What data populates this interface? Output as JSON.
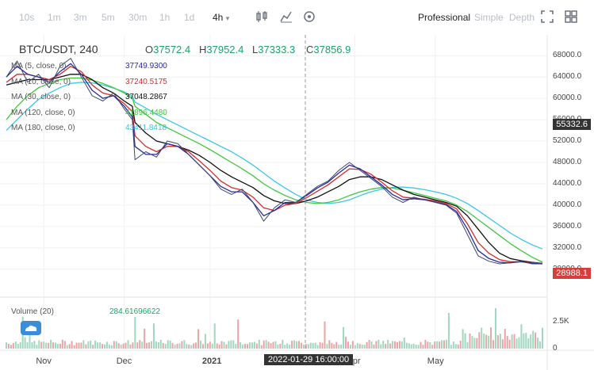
{
  "toolbar": {
    "intervals": [
      "10s",
      "1m",
      "3m",
      "5m",
      "30m",
      "1h",
      "1d"
    ],
    "active_interval": "4h",
    "icons": [
      "candle-style-icon",
      "indicators-icon",
      "settings-icon"
    ],
    "modes": [
      "Professional",
      "Simple",
      "Depth"
    ],
    "active_mode": "Professional",
    "right_icons": [
      "fullscreen-icon",
      "layout-grid-icon"
    ]
  },
  "header": {
    "pair": "BTC/USDT, 240",
    "open_label": "O",
    "open": "37572.4",
    "high_label": "H",
    "high": "37952.4",
    "low_label": "L",
    "low": "37333.3",
    "close_label": "C",
    "close": "37856.9"
  },
  "ma_legend": [
    {
      "label": "MA (5, close, 0)",
      "value": "37749.9300",
      "color": "#2a2a9e"
    },
    {
      "label": "MA (10, close, 0)",
      "value": "37240.5175",
      "color": "#d42c2c"
    },
    {
      "label": "MA (30, close, 0)",
      "value": "37048.2867",
      "color": "#111111"
    },
    {
      "label": "MA (120, close, 0)",
      "value": "41896.4480",
      "color": "#3ec83e"
    },
    {
      "label": "MA (180, close, 0)",
      "value": "43411.8418",
      "color": "#39c6e6"
    }
  ],
  "price_tags": {
    "upper": {
      "value": "55332.6",
      "color": "#333333"
    },
    "last": {
      "value": "28988.1",
      "color": "#d43f3a"
    }
  },
  "volume": {
    "title": "Volume (20)",
    "value": "284.61696622",
    "ticks": [
      {
        "label": "2.5K",
        "v": 2500
      },
      {
        "label": "0",
        "v": 0
      }
    ],
    "max": 3600
  },
  "crosshair_label": "2022-01-29 16:00:00",
  "chart_data": {
    "type": "line",
    "title": "BTC/USDT, 240",
    "y_ticks": [
      68000,
      64000,
      60000,
      56000,
      52000,
      48000,
      44000,
      40000,
      36000,
      32000,
      28000
    ],
    "ylim": [
      25000,
      71000
    ],
    "x_ticks": [
      "Nov",
      "Dec",
      "2021",
      "Apr",
      "May"
    ],
    "x_tick_pos": [
      0.07,
      0.22,
      0.38,
      0.65,
      0.8
    ],
    "price_series": {
      "name": "BTC/USDT",
      "x": [
        0,
        0.02,
        0.04,
        0.06,
        0.08,
        0.1,
        0.12,
        0.14,
        0.16,
        0.18,
        0.2,
        0.22,
        0.235,
        0.24,
        0.26,
        0.28,
        0.3,
        0.32,
        0.34,
        0.36,
        0.38,
        0.4,
        0.42,
        0.44,
        0.46,
        0.48,
        0.5,
        0.52,
        0.54,
        0.56,
        0.58,
        0.6,
        0.62,
        0.64,
        0.66,
        0.68,
        0.7,
        0.72,
        0.74,
        0.76,
        0.78,
        0.8,
        0.82,
        0.84,
        0.86,
        0.88,
        0.9,
        0.92,
        0.94,
        0.96,
        0.98,
        1.0
      ],
      "values": [
        64000,
        67000,
        63000,
        64500,
        62000,
        66000,
        67500,
        64000,
        60500,
        59500,
        61000,
        58000,
        56000,
        48500,
        50000,
        49000,
        52000,
        51500,
        49500,
        47500,
        45500,
        43000,
        42000,
        43000,
        40500,
        37000,
        39500,
        41000,
        40500,
        42000,
        43500,
        44500,
        46500,
        48000,
        46500,
        45000,
        43500,
        41500,
        40500,
        41500,
        41000,
        40500,
        40000,
        38500,
        34500,
        30500,
        29500,
        29000,
        29200,
        29500,
        29000,
        28988
      ]
    },
    "series": [
      {
        "name": "MA (5, close, 0)",
        "values": [
          64000,
          66000,
          64500,
          64000,
          63000,
          65000,
          66500,
          64500,
          61500,
          60000,
          60500,
          58500,
          56500,
          51000,
          49500,
          49500,
          51500,
          51000,
          49500,
          47500,
          45500,
          43500,
          42500,
          42500,
          40500,
          38000,
          39000,
          40500,
          40500,
          41800,
          43200,
          44300,
          46000,
          47500,
          46800,
          45300,
          43800,
          42000,
          41000,
          41200,
          41000,
          40600,
          40100,
          38800,
          35500,
          31500,
          30000,
          29300,
          29200,
          29400,
          29100,
          29000
        ]
      },
      {
        "name": "MA (10, close, 0)",
        "values": [
          63000,
          64500,
          64500,
          64000,
          63500,
          64500,
          66000,
          65000,
          62500,
          61000,
          60500,
          59000,
          57500,
          53000,
          51000,
          50000,
          51000,
          51000,
          50000,
          48300,
          46500,
          44500,
          43300,
          42800,
          41500,
          39500,
          39000,
          40000,
          40300,
          41400,
          42600,
          43800,
          45300,
          46800,
          46700,
          45800,
          44300,
          42700,
          41500,
          41300,
          41100,
          40800,
          40300,
          39300,
          36500,
          33000,
          31000,
          29800,
          29400,
          29400,
          29200,
          29100
        ]
      },
      {
        "name": "MA (30, close, 0)",
        "values": [
          62500,
          63000,
          63500,
          63500,
          63500,
          64000,
          64500,
          64500,
          63500,
          62000,
          61000,
          59500,
          58500,
          55500,
          53500,
          52000,
          51500,
          51000,
          50300,
          49300,
          48000,
          46500,
          45300,
          44300,
          43300,
          41800,
          40800,
          40300,
          40300,
          40800,
          41500,
          42500,
          43500,
          44800,
          45300,
          45300,
          44800,
          43800,
          42800,
          42000,
          41500,
          41000,
          40500,
          39800,
          38000,
          35500,
          33000,
          31000,
          30000,
          29600,
          29300,
          29100
        ]
      },
      {
        "name": "MA (120, close, 0)",
        "values": [
          56000,
          58500,
          60500,
          62000,
          62800,
          63500,
          63800,
          63800,
          63400,
          62800,
          62000,
          61000,
          60000,
          58500,
          57000,
          55500,
          54500,
          53500,
          52500,
          51500,
          50400,
          49200,
          48000,
          46800,
          45500,
          44000,
          42800,
          41800,
          41000,
          40500,
          40300,
          40500,
          41000,
          41800,
          42500,
          43000,
          43300,
          43200,
          42800,
          42300,
          41800,
          41300,
          40800,
          40000,
          38800,
          37300,
          35800,
          34300,
          32800,
          31500,
          30300,
          29300
        ]
      },
      {
        "name": "MA (180, close, 0)",
        "values": [
          54000,
          56000,
          58000,
          59800,
          61000,
          62000,
          62800,
          63000,
          62900,
          62500,
          61900,
          61200,
          60400,
          59300,
          58200,
          57000,
          56000,
          55000,
          54000,
          53000,
          52000,
          51000,
          50000,
          48800,
          47500,
          46000,
          44500,
          43200,
          42000,
          41000,
          40500,
          40300,
          40500,
          41000,
          41800,
          42500,
          43000,
          43300,
          43400,
          43200,
          42900,
          42500,
          42000,
          41300,
          40300,
          39000,
          37600,
          36200,
          34800,
          33600,
          32600,
          31800
        ]
      }
    ]
  }
}
